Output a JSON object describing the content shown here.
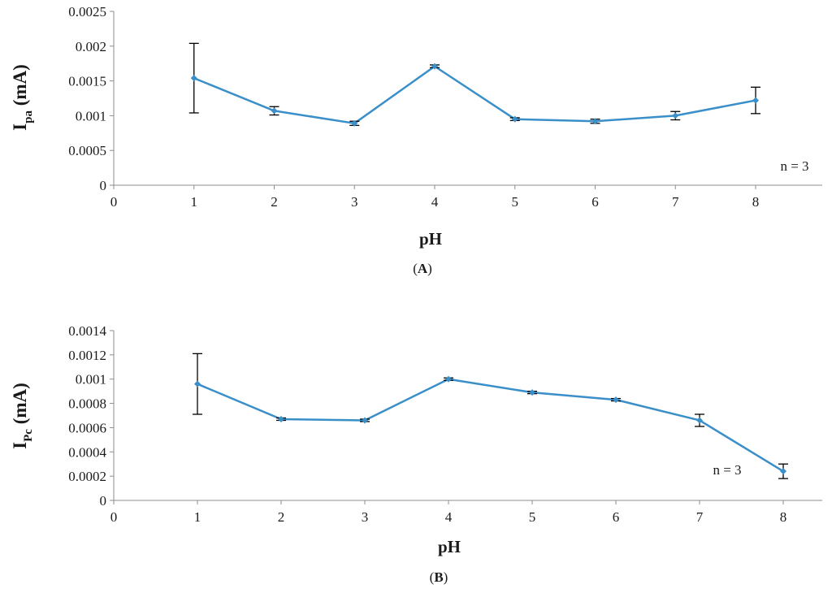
{
  "chart_data": [
    {
      "type": "line",
      "panel_label": "A",
      "xlabel": "pH",
      "ylabel_main": "I",
      "ylabel_sub": "pa",
      "ylabel_unit": " (mA)",
      "annotation": "n = 3",
      "xlim": [
        0,
        9
      ],
      "ylim": [
        0,
        0.0025
      ],
      "xticks": [
        "0",
        "1",
        "2",
        "3",
        "4",
        "5",
        "6",
        "7",
        "8"
      ],
      "yticks": [
        "0",
        "0.0005",
        "0.001",
        "0.0015",
        "0.002",
        "0.0025"
      ],
      "grid": false,
      "color": "#3a8fc9",
      "x": [
        1,
        2,
        3,
        4,
        5,
        6,
        7,
        8
      ],
      "y": [
        0.00154,
        0.00107,
        0.00089,
        0.00171,
        0.00095,
        0.00092,
        0.001,
        0.00122
      ],
      "error": [
        0.0005,
        6e-05,
        3e-05,
        2e-05,
        2e-05,
        3e-05,
        6e-05,
        0.00019
      ]
    },
    {
      "type": "line",
      "panel_label": "B",
      "xlabel": "pH",
      "ylabel_main": "I",
      "ylabel_sub": "Pc",
      "ylabel_unit": " (mA)",
      "annotation": "n = 3",
      "xlim": [
        0,
        9
      ],
      "ylim": [
        0,
        0.0014
      ],
      "xticks": [
        "0",
        "1",
        "2",
        "3",
        "4",
        "5",
        "6",
        "7",
        "8"
      ],
      "yticks": [
        "0",
        "0.0002",
        "0.0004",
        "0.0006",
        "0.0008",
        "0.001",
        "0.0012",
        "0.0014"
      ],
      "grid": false,
      "color": "#3a8fc9",
      "x": [
        1,
        2,
        3,
        4,
        5,
        6,
        7,
        8
      ],
      "y": [
        0.00096,
        0.00067,
        0.00066,
        0.001,
        0.00089,
        0.00083,
        0.00066,
        0.00024
      ],
      "error": [
        0.00025,
        1e-05,
        1e-05,
        1e-05,
        1e-05,
        1e-05,
        5e-05,
        6e-05
      ]
    }
  ]
}
